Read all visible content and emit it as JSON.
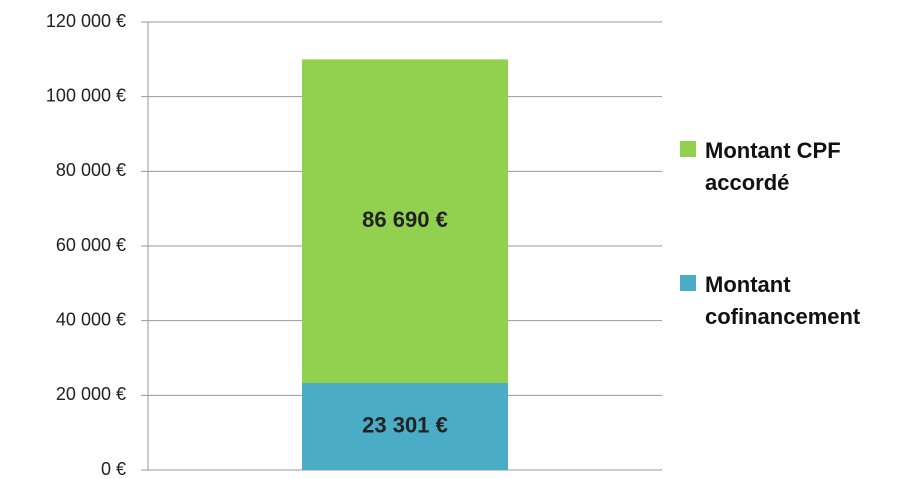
{
  "chart_data": {
    "type": "stacked_bar",
    "categories": [
      null
    ],
    "series": [
      {
        "name": "Montant cofinancement",
        "color": "#4bacc6",
        "values": [
          23301
        ],
        "value_labels": [
          "23 301 €"
        ]
      },
      {
        "name": "Montant CPF accordé",
        "color": "#92d050",
        "values": [
          86690
        ],
        "value_labels": [
          "86 690 €"
        ]
      }
    ],
    "ylim": [
      0,
      120000
    ],
    "yticks": [
      {
        "value": 0,
        "label": "0 €"
      },
      {
        "value": 20000,
        "label": "20 000 €"
      },
      {
        "value": 40000,
        "label": "40 000 €"
      },
      {
        "value": 60000,
        "label": "60 000 €"
      },
      {
        "value": 80000,
        "label": "80 000 €"
      },
      {
        "value": 100000,
        "label": "100 000 €"
      },
      {
        "value": 120000,
        "label": "120 000 €"
      }
    ],
    "grid": true,
    "legend": "right"
  }
}
